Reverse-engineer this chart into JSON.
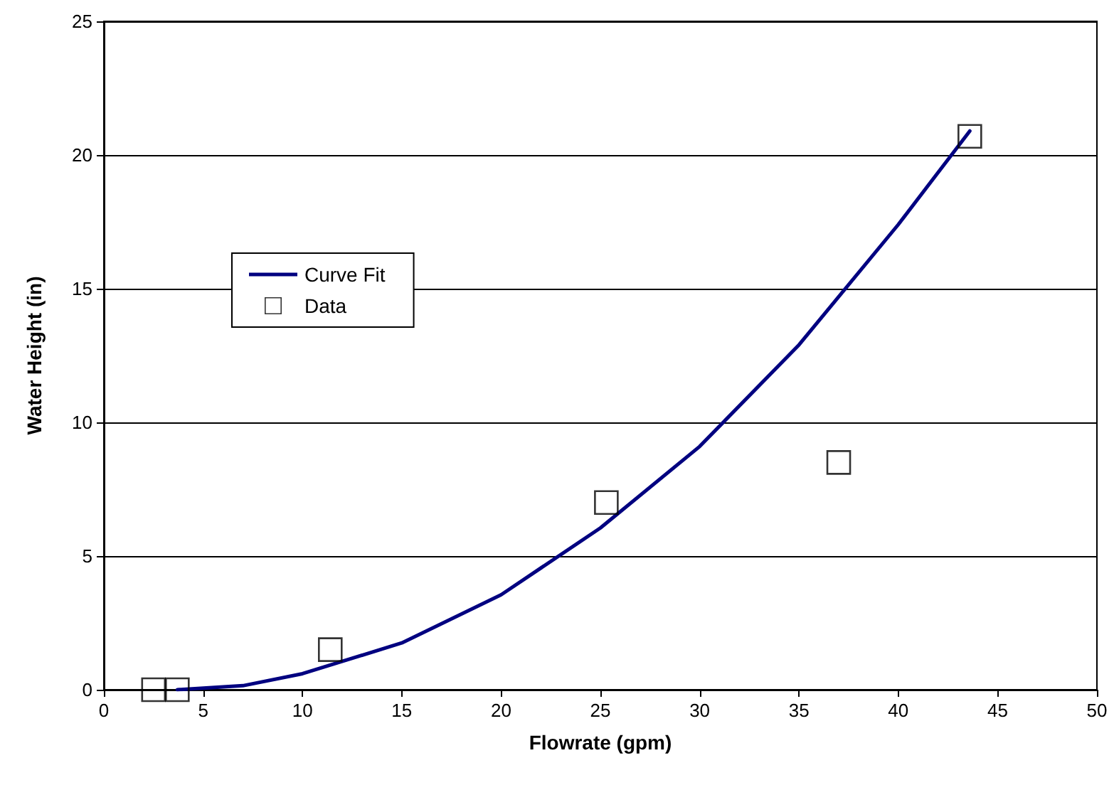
{
  "chart_data": {
    "type": "scatter",
    "xlabel": "Flowrate (gpm)",
    "ylabel": "Water Height (in)",
    "xlim": [
      0,
      50
    ],
    "xticks": [
      0,
      5,
      10,
      15,
      20,
      25,
      30,
      35,
      40,
      45,
      50
    ],
    "ylim": [
      0,
      25
    ],
    "yticks": [
      0,
      5,
      10,
      15,
      20,
      25
    ],
    "grid": "y",
    "legend": "left",
    "series": [
      {
        "name": "Curve Fit",
        "type": "line",
        "color": "#000080",
        "marker": "none",
        "line_style": "solid",
        "x": [
          3.7,
          7,
          10,
          15,
          20,
          25,
          30,
          35,
          40,
          43.6
        ],
        "values": [
          0,
          0.15,
          0.6,
          1.75,
          3.55,
          6.05,
          9.1,
          12.9,
          17.4,
          20.9
        ]
      },
      {
        "name": "Data",
        "color": "#000000",
        "marker": "square",
        "x": [
          2.5,
          3.7,
          11.4,
          25.3,
          37,
          43.6
        ],
        "values": [
          0,
          0,
          1.5,
          7,
          8.5,
          20.7
        ]
      }
    ]
  }
}
